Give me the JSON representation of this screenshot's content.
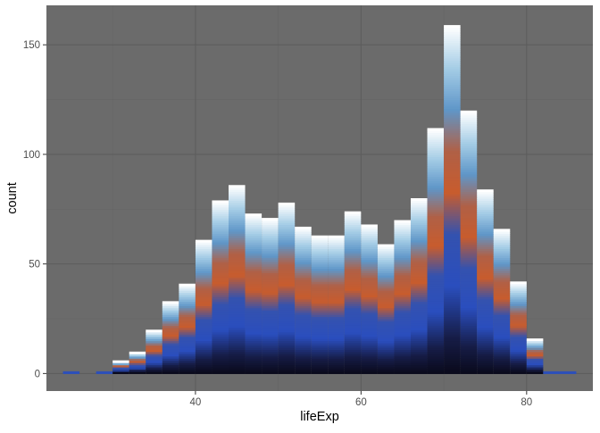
{
  "chart_data": {
    "type": "bar",
    "subtype": "histogram",
    "title": "",
    "xlabel": "lifeExp",
    "ylabel": "count",
    "xlim": [
      22,
      88
    ],
    "ylim": [
      -8,
      168
    ],
    "x_ticks": [
      40,
      60,
      80
    ],
    "y_ticks": [
      0,
      50,
      100,
      150
    ],
    "x_tick_labels": [
      "40",
      "60",
      "80"
    ],
    "y_tick_labels": [
      "0",
      "50",
      "100",
      "150"
    ],
    "grid": true,
    "bin_width": 2,
    "bins": [
      {
        "x": 25,
        "count": 1
      },
      {
        "x": 29,
        "count": 1
      },
      {
        "x": 31,
        "count": 6
      },
      {
        "x": 33,
        "count": 10
      },
      {
        "x": 35,
        "count": 20
      },
      {
        "x": 37,
        "count": 33
      },
      {
        "x": 39,
        "count": 41
      },
      {
        "x": 41,
        "count": 61
      },
      {
        "x": 43,
        "count": 79
      },
      {
        "x": 45,
        "count": 86
      },
      {
        "x": 47,
        "count": 73
      },
      {
        "x": 49,
        "count": 71
      },
      {
        "x": 51,
        "count": 78
      },
      {
        "x": 53,
        "count": 67
      },
      {
        "x": 55,
        "count": 63
      },
      {
        "x": 57,
        "count": 63
      },
      {
        "x": 59,
        "count": 74
      },
      {
        "x": 61,
        "count": 68
      },
      {
        "x": 63,
        "count": 59
      },
      {
        "x": 65,
        "count": 70
      },
      {
        "x": 67,
        "count": 80
      },
      {
        "x": 69,
        "count": 112
      },
      {
        "x": 71,
        "count": 159
      },
      {
        "x": 73,
        "count": 120
      },
      {
        "x": 75,
        "count": 84
      },
      {
        "x": 77,
        "count": 66
      },
      {
        "x": 79,
        "count": 42
      },
      {
        "x": 81,
        "count": 16
      },
      {
        "x": 83,
        "count": 1
      },
      {
        "x": 85,
        "count": 1
      }
    ],
    "fill_gradient_colors": [
      "#0b0b1e",
      "#2a4fb8",
      "#c75a2c",
      "#6aa6d6",
      "#ffffff"
    ]
  },
  "colors": {
    "panel_background": "#6b6b6b",
    "grid_major": "#5d5d5d",
    "grid_minor": "#656565"
  }
}
